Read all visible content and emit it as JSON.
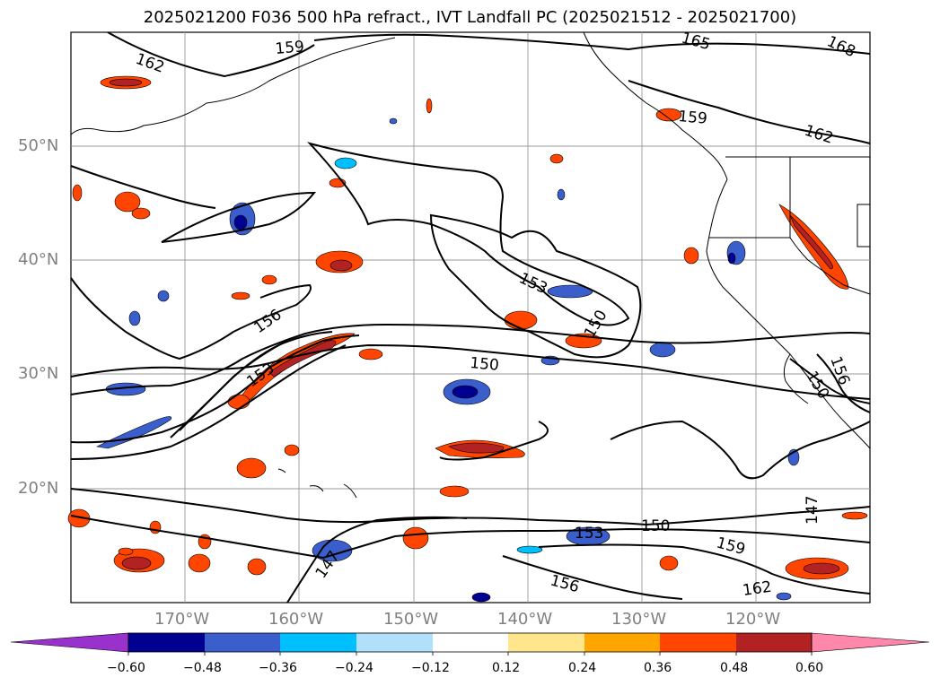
{
  "title": "2025021200 F036 500 hPa refract., IVT Landfall PC (2025021512 - 2025021700)",
  "lat_labels": [
    "50°N",
    "40°N",
    "30°N",
    "20°N"
  ],
  "lon_labels": [
    "170°W",
    "160°W",
    "150°W",
    "140°W",
    "130°W",
    "120°W"
  ],
  "contour_labels": [
    "162",
    "159",
    "165",
    "168",
    "159",
    "162",
    "153",
    "150",
    "156",
    "150",
    "153",
    "156",
    "150",
    "147",
    "153",
    "150",
    "159",
    "156",
    "162",
    "147"
  ],
  "colorbar": {
    "ticks": [
      "−0.60",
      "−0.48",
      "−0.36",
      "−0.24",
      "−0.12",
      "0.12",
      "0.24",
      "0.36",
      "0.48",
      "0.60"
    ],
    "colors": [
      "#9932cc",
      "#000090",
      "#3a5fcd",
      "#00bfff",
      "#b0e0fa",
      "#ffffff",
      "#ffe68c",
      "#ffa500",
      "#ff4500",
      "#b22222",
      "#ff88aa"
    ]
  }
}
